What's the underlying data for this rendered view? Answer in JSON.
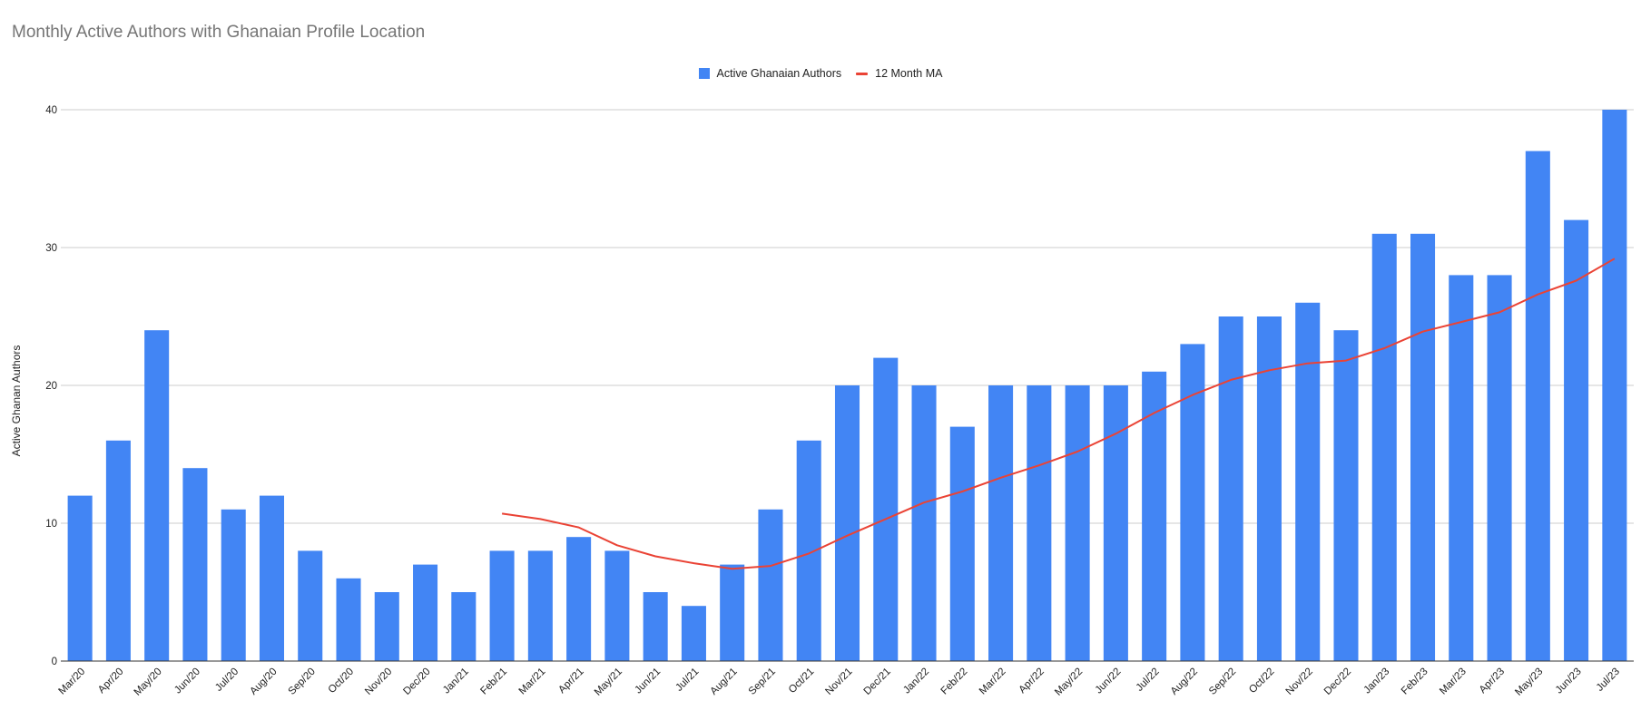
{
  "chart_data": {
    "type": "bar",
    "title": "Monthly Active Authors with Ghanaian Profile Location",
    "xlabel": "",
    "ylabel": "Active Ghanan Authors",
    "ylim": [
      0,
      40
    ],
    "yticks": [
      0,
      10,
      20,
      30,
      40
    ],
    "grid": true,
    "legend_position": "top-center",
    "categories": [
      "Mar/20",
      "Apr/20",
      "May/20",
      "Jun/20",
      "Jul/20",
      "Aug/20",
      "Sep/20",
      "Oct/20",
      "Nov/20",
      "Dec/20",
      "Jan/21",
      "Feb/21",
      "Mar/21",
      "Apr/21",
      "May/21",
      "Jun/21",
      "Jul/21",
      "Aug/21",
      "Sep/21",
      "Oct/21",
      "Nov/21",
      "Dec/21",
      "Jan/22",
      "Feb/22",
      "Mar/22",
      "Apr/22",
      "May/22",
      "Jun/22",
      "Jul/22",
      "Aug/22",
      "Sep/22",
      "Oct/22",
      "Nov/22",
      "Dec/22",
      "Jan/23",
      "Feb/23",
      "Mar/23",
      "Apr/23",
      "May/23",
      "Jun/23",
      "Jul/23"
    ],
    "series": [
      {
        "name": "Active Ghanaian Authors",
        "type": "bar",
        "color": "#4285f4",
        "values": [
          12,
          16,
          24,
          14,
          11,
          12,
          8,
          6,
          5,
          7,
          5,
          8,
          8,
          9,
          8,
          5,
          4,
          7,
          11,
          16,
          20,
          22,
          20,
          17,
          20,
          20,
          20,
          20,
          21,
          23,
          25,
          25,
          26,
          24,
          31,
          31,
          28,
          28,
          37,
          32,
          40
        ]
      },
      {
        "name": "12 Month MA",
        "type": "line",
        "color": "#ea4335",
        "values": [
          null,
          null,
          null,
          null,
          null,
          null,
          null,
          null,
          null,
          null,
          null,
          10.7,
          10.3,
          9.7,
          8.4,
          7.6,
          7.1,
          6.7,
          6.9,
          7.8,
          9.1,
          10.3,
          11.5,
          12.3,
          13.3,
          14.2,
          15.2,
          16.5,
          18.0,
          19.3,
          20.4,
          21.1,
          21.6,
          21.8,
          22.7,
          23.9,
          24.6,
          25.3,
          26.6,
          27.6,
          29.2
        ]
      }
    ]
  }
}
